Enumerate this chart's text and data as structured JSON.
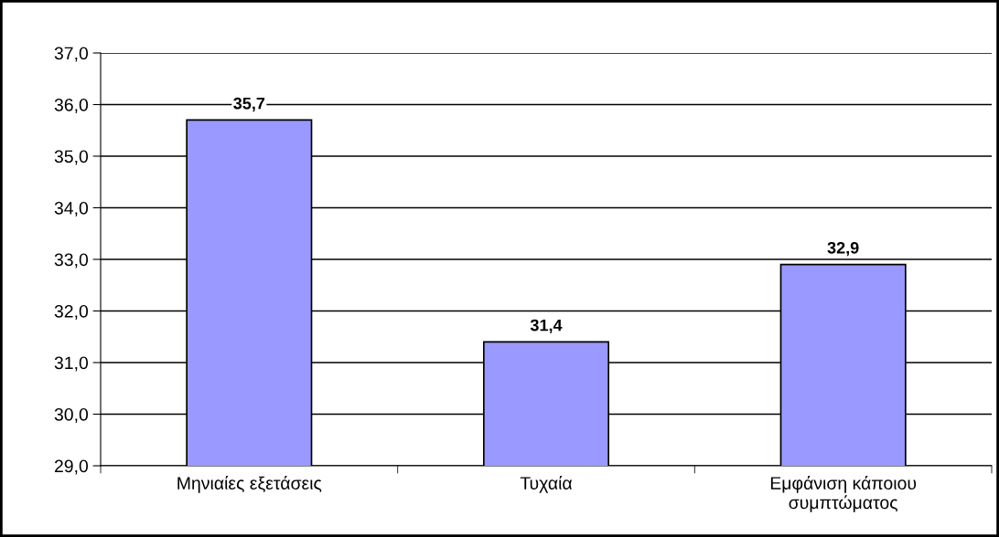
{
  "chart_data": {
    "type": "bar",
    "categories": [
      "Μηνιαίες εξετάσεις",
      "Τυχαία",
      "Εμφάνιση κάποιου συμπτώματος"
    ],
    "values": [
      35.7,
      31.4,
      32.9
    ],
    "value_labels": [
      "35,7",
      "31,4",
      "32,9"
    ],
    "color": "#9999ff",
    "ylim": [
      29,
      37
    ],
    "yticks": [
      {
        "value": 29,
        "label": "29,0"
      },
      {
        "value": 30,
        "label": "30,0"
      },
      {
        "value": 31,
        "label": "31,0"
      },
      {
        "value": 32,
        "label": "32,0"
      },
      {
        "value": 33,
        "label": "33,0"
      },
      {
        "value": 34,
        "label": "34,0"
      },
      {
        "value": 35,
        "label": "35,0"
      },
      {
        "value": 36,
        "label": "36,0"
      },
      {
        "value": 37,
        "label": "37,0"
      }
    ],
    "grid": "y"
  }
}
